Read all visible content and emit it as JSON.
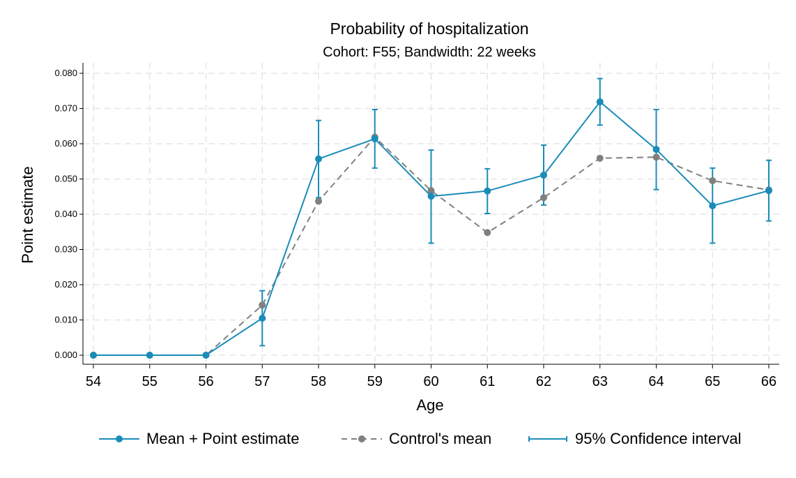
{
  "chart_data": {
    "type": "line",
    "title": "Probability of hospitalization",
    "subtitle": "Cohort: F55; Bandwidth: 22 weeks",
    "xlabel": "Age",
    "ylabel": "Point estimate",
    "x": [
      54,
      55,
      56,
      57,
      58,
      59,
      60,
      61,
      62,
      63,
      64,
      65,
      66
    ],
    "x_ticks": [
      "54",
      "55",
      "56",
      "57",
      "58",
      "59",
      "60",
      "61",
      "62",
      "63",
      "64",
      "65",
      "66"
    ],
    "y_ticks": [
      "0.000",
      "0.010",
      "0.020",
      "0.030",
      "0.040",
      "0.050",
      "0.060",
      "0.070",
      "0.080"
    ],
    "xlim": [
      54,
      66
    ],
    "ylim": [
      0,
      0.08
    ],
    "grid": true,
    "legend_position": "bottom",
    "series": [
      {
        "name": "Mean + Point estimate",
        "style": "solid",
        "color": "#1a8cb8",
        "values": [
          0.0,
          0.0,
          0.0,
          0.0105,
          0.0557,
          0.0614,
          0.0451,
          0.0466,
          0.0511,
          0.0719,
          0.0584,
          0.0424,
          0.0467
        ]
      },
      {
        "name": "Control's mean",
        "style": "dashed",
        "color": "#808080",
        "values": [
          0.0,
          0.0,
          0.0,
          0.0142,
          0.0437,
          0.0619,
          0.0467,
          0.0348,
          0.0447,
          0.0559,
          0.0562,
          0.0495,
          0.0469
        ]
      }
    ],
    "confidence_interval": {
      "name": "95% Confidence interval",
      "color": "#1a8cb8",
      "lower": [
        null,
        null,
        null,
        0.0027,
        0.0447,
        0.0531,
        0.0318,
        0.0402,
        0.0426,
        0.0653,
        0.047,
        0.0318,
        0.0381
      ],
      "upper": [
        null,
        null,
        null,
        0.0183,
        0.0666,
        0.0697,
        0.0582,
        0.0529,
        0.0596,
        0.0785,
        0.0697,
        0.0531,
        0.0553
      ]
    }
  },
  "legend": {
    "mean_label": "Mean + Point estimate",
    "control_label": "Control's mean",
    "ci_label": "95% Confidence interval"
  }
}
